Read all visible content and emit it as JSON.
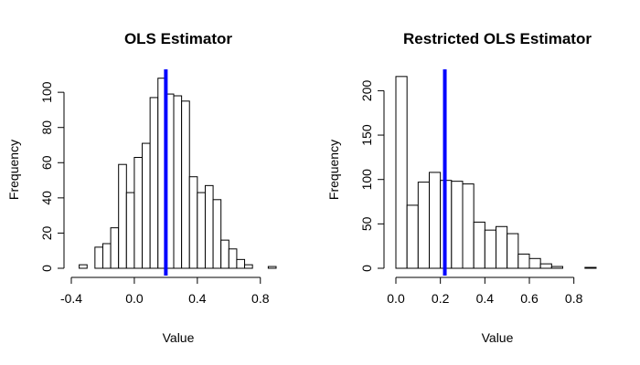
{
  "chart_data": [
    {
      "type": "bar",
      "subtype": "histogram",
      "title": "OLS Estimator",
      "xlabel": "Value",
      "ylabel": "Frequency",
      "bin_width": 0.05,
      "bin_start": -0.35,
      "values": [
        2,
        0,
        12,
        14,
        23,
        59,
        43,
        63,
        71,
        97,
        108,
        99,
        98,
        95,
        52,
        43,
        47,
        39,
        16,
        11,
        5,
        2,
        0,
        0,
        1
      ],
      "xlim": [
        -0.4,
        0.9
      ],
      "ylim": [
        0,
        112
      ],
      "xticks": [
        -0.4,
        0.0,
        0.4,
        0.8
      ],
      "xtick_labels": [
        "-0.4",
        "0.0",
        "0.4",
        "0.8"
      ],
      "yticks": [
        0,
        20,
        40,
        60,
        80,
        100
      ],
      "ytick_labels": [
        "0",
        "20",
        "40",
        "60",
        "80",
        "100"
      ],
      "vline": {
        "x": 0.2,
        "color": "#0000ff"
      },
      "bar_fill": "#ffffff",
      "bar_stroke": "#000000"
    },
    {
      "type": "bar",
      "subtype": "histogram",
      "title": "Restricted OLS Estimator",
      "xlabel": "Value",
      "ylabel": "Frequency",
      "bin_width": 0.05,
      "bin_start": 0.0,
      "values": [
        216,
        71,
        97,
        108,
        99,
        98,
        95,
        52,
        43,
        47,
        39,
        16,
        11,
        5,
        2,
        0,
        0,
        1
      ],
      "xlim": [
        0.0,
        0.9
      ],
      "ylim": [
        0,
        222
      ],
      "xticks": [
        0.0,
        0.2,
        0.4,
        0.6,
        0.8
      ],
      "xtick_labels": [
        "0.0",
        "0.2",
        "0.4",
        "0.6",
        "0.8"
      ],
      "yticks": [
        0,
        50,
        100,
        150,
        200
      ],
      "ytick_labels": [
        "0",
        "50",
        "100",
        "150",
        "200"
      ],
      "vline": {
        "x": 0.22,
        "color": "#0000ff"
      },
      "bar_fill": "#ffffff",
      "bar_stroke": "#000000"
    }
  ]
}
